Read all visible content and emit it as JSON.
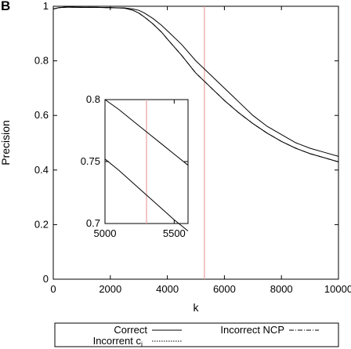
{
  "panel_label": "B",
  "chart_data": [
    {
      "type": "line",
      "role": "main",
      "title": "",
      "xlabel": "k",
      "ylabel": "Precision",
      "xlim": [
        0,
        10000
      ],
      "ylim": [
        0,
        1
      ],
      "xticks": [
        0,
        2000,
        4000,
        6000,
        8000,
        10000
      ],
      "yticks": [
        0,
        0.2,
        0.4,
        0.6,
        0.8,
        1
      ],
      "xtick_labels": [
        "0",
        "2000",
        "4000",
        "6000",
        "8000",
        "10000"
      ],
      "ytick_labels": [
        "0",
        "0.2",
        "0.4",
        "0.6",
        "0.8",
        "1"
      ],
      "grid": false,
      "vline": {
        "x": 5300,
        "color": "#e8a0a0"
      },
      "series": [
        {
          "name": "Correct",
          "style": "solid",
          "x": [
            0,
            200,
            500,
            1000,
            1500,
            2000,
            2500,
            2800,
            3000,
            3200,
            3500,
            3800,
            4000,
            4500,
            5000,
            5300,
            5500,
            6000,
            6500,
            7000,
            7500,
            8000,
            8500,
            9000,
            9500,
            10000
          ],
          "y": [
            0.99,
            0.995,
            0.997,
            0.996,
            0.996,
            0.995,
            0.994,
            0.99,
            0.985,
            0.975,
            0.955,
            0.93,
            0.91,
            0.86,
            0.8,
            0.77,
            0.75,
            0.7,
            0.65,
            0.6,
            0.56,
            0.53,
            0.5,
            0.48,
            0.465,
            0.45
          ]
        },
        {
          "name": "Incorrent c",
          "style": "solid",
          "x": [
            0,
            200,
            500,
            1000,
            1500,
            2000,
            2500,
            2800,
            3000,
            3200,
            3500,
            3800,
            4000,
            4500,
            5000,
            5300,
            5500,
            6000,
            6500,
            7000,
            7500,
            8000,
            8500,
            9000,
            9500,
            10000
          ],
          "y": [
            0.99,
            0.995,
            0.997,
            0.996,
            0.996,
            0.995,
            0.993,
            0.985,
            0.975,
            0.96,
            0.935,
            0.905,
            0.88,
            0.82,
            0.755,
            0.725,
            0.705,
            0.655,
            0.61,
            0.57,
            0.535,
            0.505,
            0.48,
            0.46,
            0.445,
            0.43
          ]
        },
        {
          "name": "Incorrect NCP",
          "style": "dashdot",
          "x": [
            0,
            200,
            500,
            1000,
            1500,
            2000,
            2500,
            2800,
            3000,
            3200,
            3500,
            3800,
            4000,
            4500,
            5000,
            5300,
            5500,
            6000,
            6500,
            7000,
            7500,
            8000,
            8500,
            9000,
            9500,
            10000
          ],
          "y": [
            0.99,
            0.995,
            0.997,
            0.996,
            0.996,
            0.995,
            0.993,
            0.985,
            0.975,
            0.96,
            0.935,
            0.905,
            0.88,
            0.82,
            0.755,
            0.725,
            0.705,
            0.655,
            0.61,
            0.57,
            0.535,
            0.505,
            0.48,
            0.46,
            0.445,
            0.43
          ]
        }
      ]
    },
    {
      "type": "line",
      "role": "inset",
      "xlim": [
        5000,
        5600
      ],
      "ylim": [
        0.7,
        0.8
      ],
      "xticks": [
        5000,
        5500
      ],
      "yticks": [
        0.7,
        0.75,
        0.8
      ],
      "xtick_labels": [
        "5000",
        "5500"
      ],
      "ytick_labels": [
        "0.7",
        "0.75",
        "0.8"
      ],
      "vline": {
        "x": 5300,
        "color": "#e8a0a0"
      },
      "series": [
        {
          "name": "Correct",
          "style": "solid",
          "x": [
            5000,
            5100,
            5200,
            5300,
            5400,
            5500,
            5600
          ],
          "y": [
            0.8,
            0.792,
            0.783,
            0.774,
            0.765,
            0.756,
            0.747
          ]
        },
        {
          "name": "Incorrent c",
          "style": "solid",
          "x": [
            5000,
            5100,
            5200,
            5300,
            5400,
            5500,
            5600
          ],
          "y": [
            0.752,
            0.743,
            0.733,
            0.723,
            0.713,
            0.703,
            0.694
          ]
        }
      ]
    }
  ],
  "legend": {
    "items": [
      {
        "label": "Correct",
        "style": "solid"
      },
      {
        "label": "Incorrect NCP",
        "style": "dashdot"
      },
      {
        "label": "Incorrent c",
        "subscript": "i",
        "style": "dotted"
      }
    ]
  }
}
